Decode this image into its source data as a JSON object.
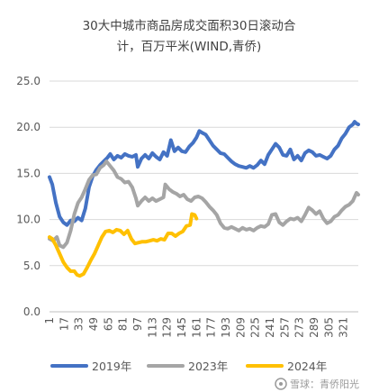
{
  "chart_data": {
    "type": "line",
    "title": [
      "30大中城市商品房成交面积30日滚动合",
      "计，百万平米(WIND,青侨)"
    ],
    "xlabel": "",
    "ylabel": "",
    "ylim": [
      0,
      25
    ],
    "yticks": [
      "0.0",
      "5.0",
      "10.0",
      "15.0",
      "20.0",
      "25.0"
    ],
    "xlim": [
      1,
      337
    ],
    "xticks": [
      "1",
      "17",
      "33",
      "49",
      "65",
      "81",
      "97",
      "113",
      "129",
      "145",
      "161",
      "177",
      "193",
      "209",
      "225",
      "241",
      "257",
      "273",
      "289",
      "305",
      "321"
    ],
    "grid": "horizontal",
    "legend_position": "bottom",
    "series": [
      {
        "name": "2019年",
        "color": "#4472c4",
        "points": [
          [
            1,
            14.6
          ],
          [
            4,
            13.8
          ],
          [
            8,
            11.8
          ],
          [
            12,
            10.3
          ],
          [
            16,
            9.7
          ],
          [
            20,
            9.4
          ],
          [
            24,
            9.9
          ],
          [
            28,
            9.8
          ],
          [
            32,
            10.2
          ],
          [
            36,
            9.9
          ],
          [
            40,
            11.2
          ],
          [
            44,
            13.5
          ],
          [
            48,
            14.7
          ],
          [
            52,
            15.4
          ],
          [
            56,
            15.9
          ],
          [
            60,
            16.3
          ],
          [
            64,
            16.7
          ],
          [
            67,
            17.1
          ],
          [
            71,
            16.5
          ],
          [
            75,
            16.9
          ],
          [
            79,
            16.7
          ],
          [
            83,
            17.1
          ],
          [
            87,
            16.9
          ],
          [
            91,
            16.8
          ],
          [
            95,
            17.0
          ],
          [
            97,
            15.7
          ],
          [
            101,
            16.6
          ],
          [
            105,
            17.0
          ],
          [
            109,
            16.6
          ],
          [
            113,
            17.2
          ],
          [
            117,
            16.8
          ],
          [
            121,
            16.5
          ],
          [
            125,
            17.3
          ],
          [
            129,
            16.9
          ],
          [
            133,
            18.6
          ],
          [
            137,
            17.4
          ],
          [
            141,
            17.8
          ],
          [
            145,
            17.4
          ],
          [
            149,
            17.3
          ],
          [
            153,
            17.9
          ],
          [
            157,
            18.3
          ],
          [
            161,
            18.9
          ],
          [
            164,
            19.6
          ],
          [
            167,
            19.4
          ],
          [
            171,
            19.2
          ],
          [
            175,
            18.6
          ],
          [
            179,
            18.0
          ],
          [
            183,
            17.6
          ],
          [
            187,
            17.2
          ],
          [
            191,
            17.1
          ],
          [
            195,
            16.7
          ],
          [
            199,
            16.3
          ],
          [
            203,
            16.0
          ],
          [
            207,
            15.8
          ],
          [
            211,
            15.7
          ],
          [
            215,
            15.6
          ],
          [
            219,
            15.8
          ],
          [
            223,
            15.6
          ],
          [
            227,
            15.9
          ],
          [
            231,
            16.4
          ],
          [
            235,
            16.0
          ],
          [
            239,
            17.0
          ],
          [
            243,
            17.6
          ],
          [
            247,
            18.2
          ],
          [
            251,
            17.8
          ],
          [
            255,
            17.0
          ],
          [
            259,
            16.9
          ],
          [
            263,
            17.6
          ],
          [
            267,
            16.5
          ],
          [
            271,
            16.9
          ],
          [
            275,
            16.4
          ],
          [
            279,
            17.2
          ],
          [
            283,
            17.5
          ],
          [
            287,
            17.3
          ],
          [
            291,
            16.9
          ],
          [
            295,
            17.0
          ],
          [
            299,
            16.8
          ],
          [
            303,
            16.6
          ],
          [
            307,
            16.9
          ],
          [
            311,
            17.6
          ],
          [
            315,
            18.0
          ],
          [
            319,
            18.8
          ],
          [
            323,
            19.3
          ],
          [
            327,
            20.0
          ],
          [
            331,
            20.3
          ],
          [
            333,
            20.6
          ],
          [
            335,
            20.4
          ],
          [
            337,
            20.3
          ]
        ]
      },
      {
        "name": "2023年",
        "color": "#a5a5a5",
        "points": [
          [
            1,
            7.9
          ],
          [
            5,
            7.7
          ],
          [
            9,
            8.1
          ],
          [
            12,
            7.2
          ],
          [
            16,
            7.0
          ],
          [
            20,
            7.5
          ],
          [
            24,
            8.8
          ],
          [
            28,
            10.6
          ],
          [
            32,
            11.8
          ],
          [
            36,
            12.4
          ],
          [
            40,
            13.3
          ],
          [
            44,
            14.3
          ],
          [
            48,
            14.8
          ],
          [
            52,
            14.9
          ],
          [
            56,
            15.6
          ],
          [
            60,
            15.9
          ],
          [
            63,
            16.3
          ],
          [
            67,
            15.8
          ],
          [
            71,
            15.3
          ],
          [
            75,
            14.6
          ],
          [
            79,
            14.4
          ],
          [
            83,
            14.0
          ],
          [
            87,
            14.1
          ],
          [
            91,
            13.5
          ],
          [
            95,
            12.3
          ],
          [
            97,
            11.5
          ],
          [
            101,
            12.0
          ],
          [
            105,
            12.4
          ],
          [
            109,
            12.0
          ],
          [
            113,
            12.3
          ],
          [
            117,
            12.0
          ],
          [
            121,
            12.2
          ],
          [
            125,
            12.4
          ],
          [
            127,
            13.8
          ],
          [
            131,
            13.3
          ],
          [
            135,
            13.0
          ],
          [
            139,
            12.8
          ],
          [
            143,
            12.5
          ],
          [
            147,
            12.7
          ],
          [
            151,
            12.2
          ],
          [
            155,
            12.0
          ],
          [
            159,
            12.4
          ],
          [
            163,
            12.5
          ],
          [
            167,
            12.3
          ],
          [
            171,
            11.9
          ],
          [
            175,
            11.4
          ],
          [
            179,
            11.0
          ],
          [
            183,
            10.5
          ],
          [
            187,
            9.6
          ],
          [
            191,
            9.1
          ],
          [
            195,
            9.0
          ],
          [
            199,
            9.2
          ],
          [
            203,
            9.0
          ],
          [
            207,
            8.8
          ],
          [
            211,
            9.1
          ],
          [
            215,
            8.9
          ],
          [
            219,
            9.0
          ],
          [
            223,
            8.8
          ],
          [
            227,
            9.1
          ],
          [
            231,
            9.3
          ],
          [
            235,
            9.2
          ],
          [
            239,
            9.5
          ],
          [
            243,
            10.5
          ],
          [
            247,
            10.6
          ],
          [
            251,
            9.7
          ],
          [
            255,
            9.4
          ],
          [
            259,
            9.8
          ],
          [
            263,
            10.1
          ],
          [
            267,
            10.0
          ],
          [
            271,
            10.2
          ],
          [
            275,
            9.8
          ],
          [
            279,
            10.5
          ],
          [
            283,
            11.3
          ],
          [
            287,
            11.0
          ],
          [
            291,
            10.6
          ],
          [
            295,
            10.9
          ],
          [
            299,
            10.1
          ],
          [
            303,
            9.6
          ],
          [
            307,
            9.8
          ],
          [
            311,
            10.3
          ],
          [
            315,
            10.5
          ],
          [
            319,
            11.0
          ],
          [
            323,
            11.4
          ],
          [
            327,
            11.6
          ],
          [
            331,
            12.0
          ],
          [
            335,
            12.9
          ],
          [
            337,
            12.7
          ]
        ]
      },
      {
        "name": "2024年",
        "color": "#ffc000",
        "points": [
          [
            1,
            8.1
          ],
          [
            4,
            7.9
          ],
          [
            8,
            7.2
          ],
          [
            12,
            6.3
          ],
          [
            16,
            5.4
          ],
          [
            20,
            4.8
          ],
          [
            24,
            4.4
          ],
          [
            28,
            4.4
          ],
          [
            31,
            4.0
          ],
          [
            34,
            3.9
          ],
          [
            38,
            4.1
          ],
          [
            42,
            4.8
          ],
          [
            46,
            5.6
          ],
          [
            50,
            6.3
          ],
          [
            54,
            7.2
          ],
          [
            58,
            8.1
          ],
          [
            62,
            8.7
          ],
          [
            66,
            8.8
          ],
          [
            70,
            8.6
          ],
          [
            74,
            8.9
          ],
          [
            78,
            8.8
          ],
          [
            82,
            8.4
          ],
          [
            86,
            8.8
          ],
          [
            90,
            7.9
          ],
          [
            94,
            7.4
          ],
          [
            98,
            7.5
          ],
          [
            102,
            7.6
          ],
          [
            106,
            7.6
          ],
          [
            110,
            7.7
          ],
          [
            114,
            7.8
          ],
          [
            118,
            7.7
          ],
          [
            122,
            7.9
          ],
          [
            126,
            7.8
          ],
          [
            130,
            8.5
          ],
          [
            134,
            8.5
          ],
          [
            138,
            8.2
          ],
          [
            142,
            8.5
          ],
          [
            146,
            8.7
          ],
          [
            150,
            9.3
          ],
          [
            154,
            9.4
          ],
          [
            156,
            10.6
          ],
          [
            159,
            10.5
          ],
          [
            161,
            10.1
          ]
        ]
      }
    ]
  },
  "watermark": "雪球：青侨阳光",
  "watermark_icon": "snowball-logo-icon"
}
